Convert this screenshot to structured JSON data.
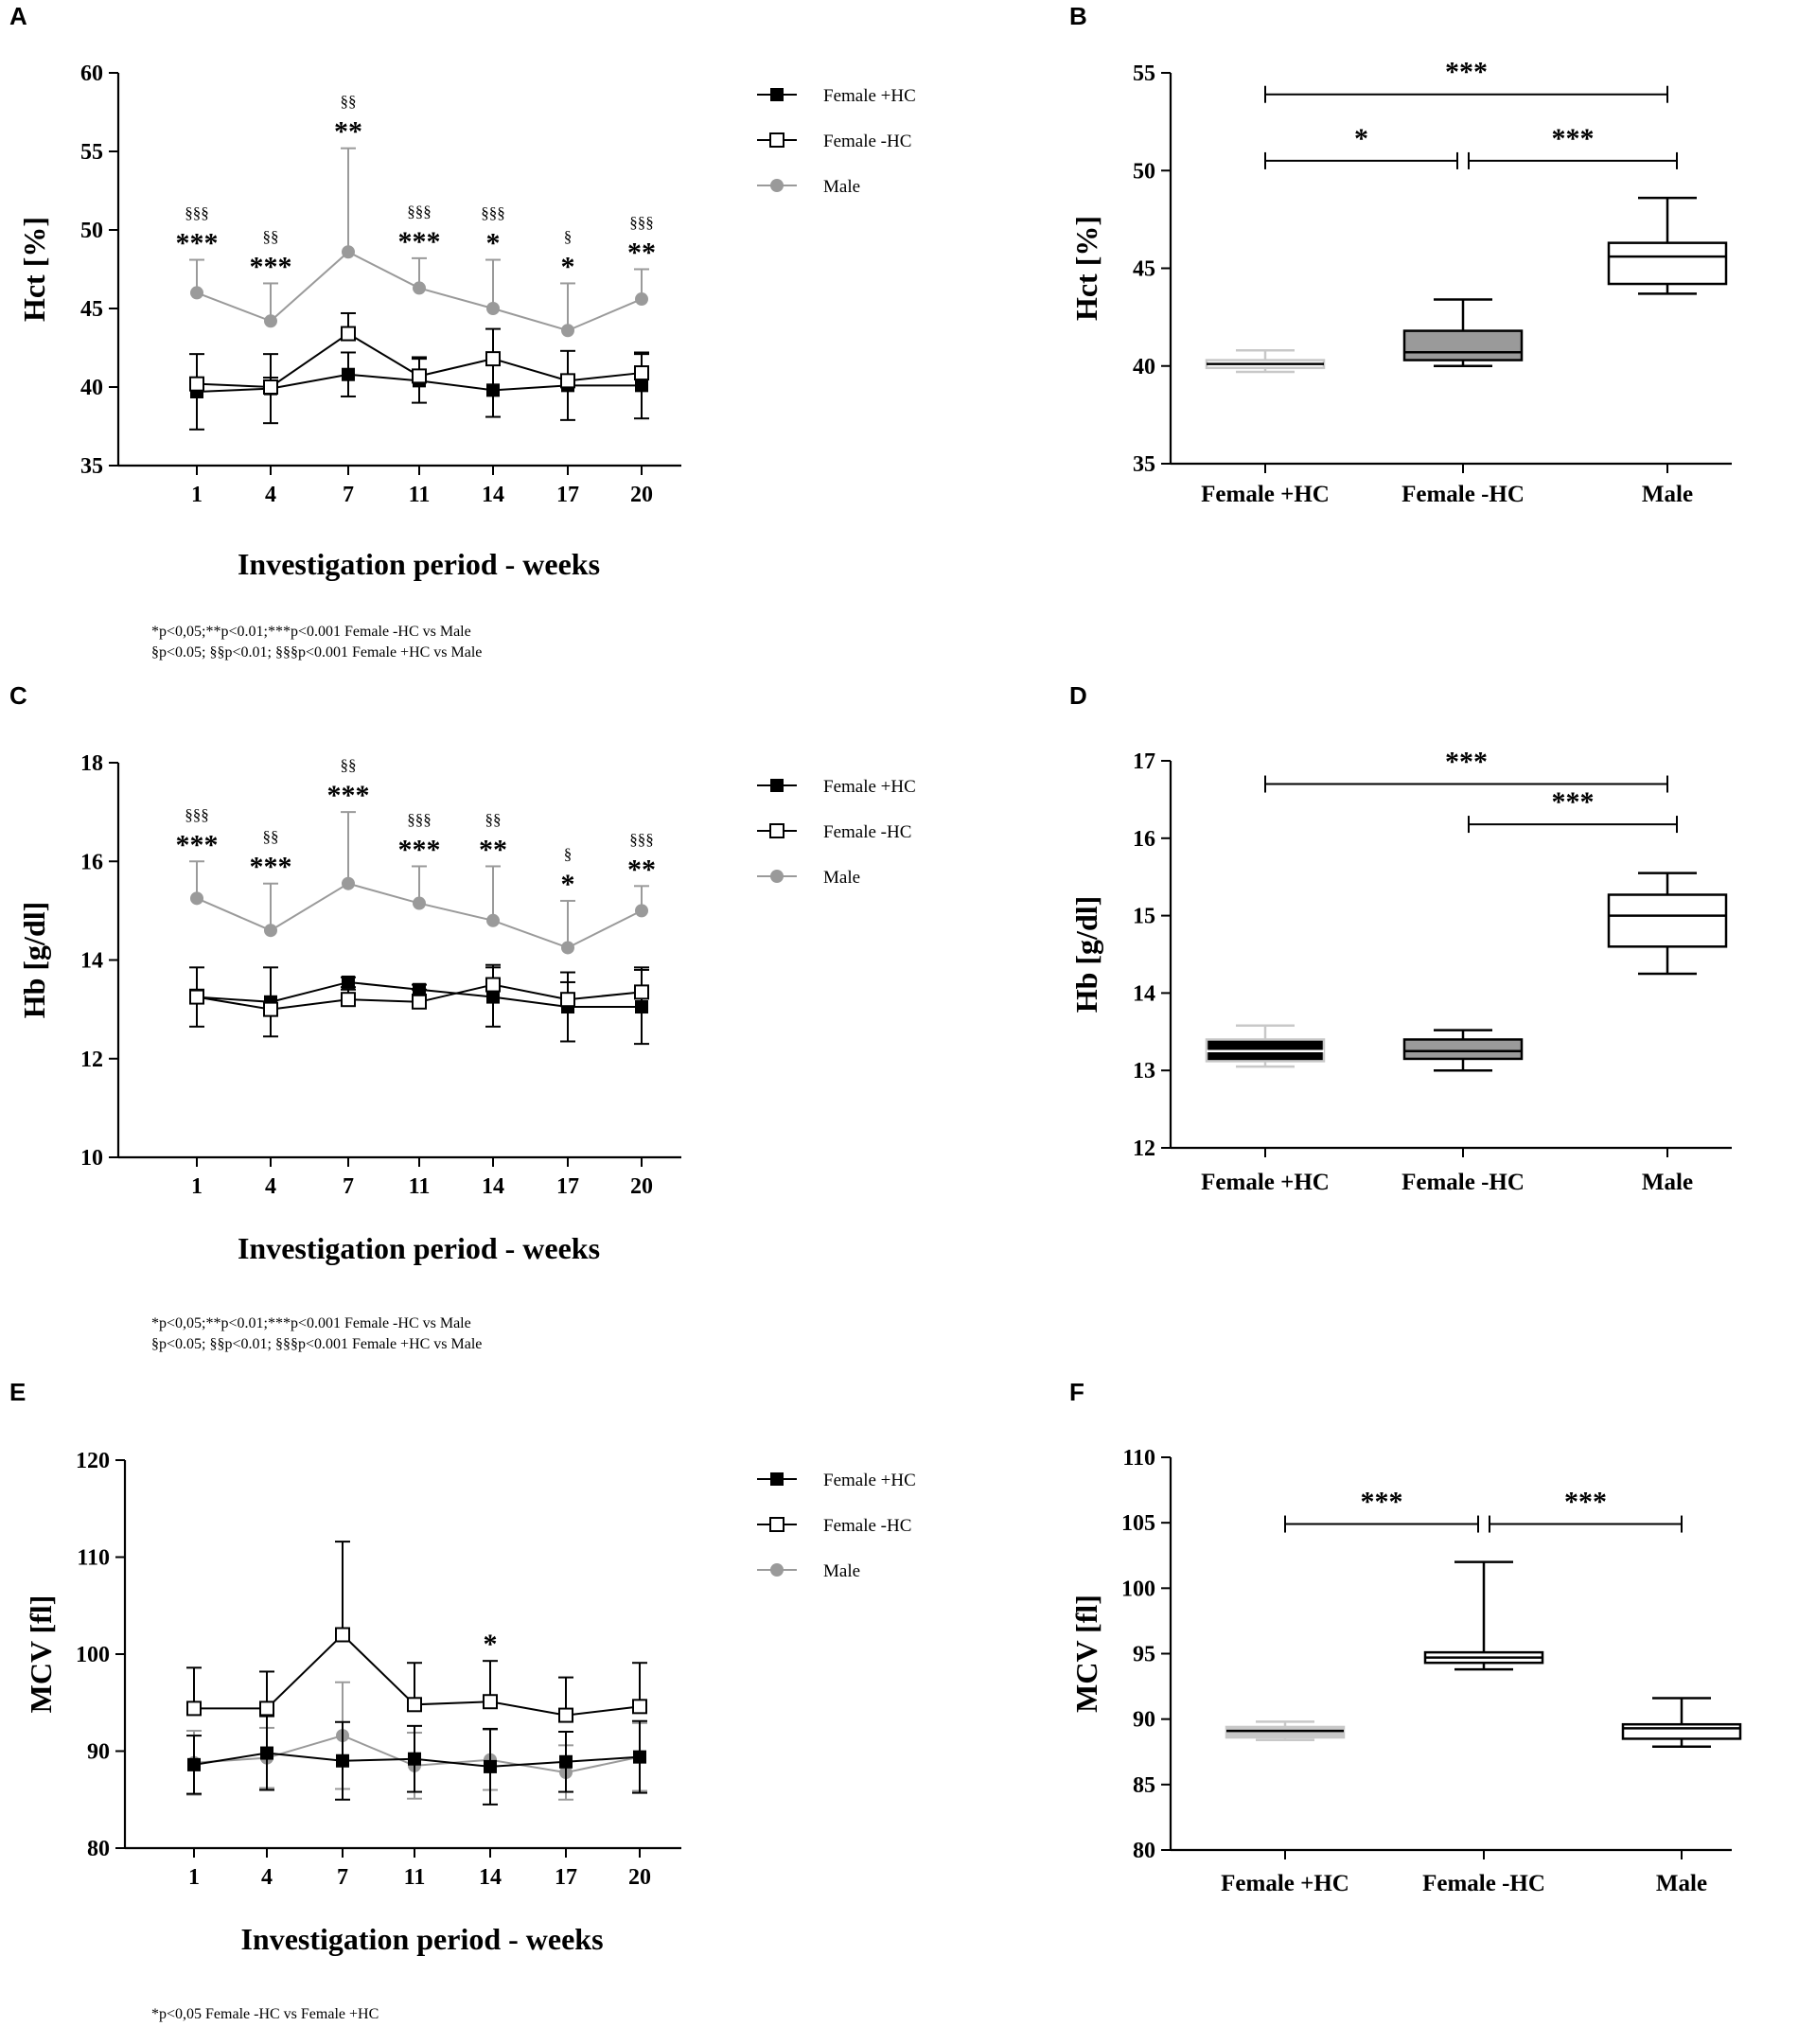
{
  "panels": {
    "A": "A",
    "B": "B",
    "C": "C",
    "D": "D",
    "E": "E",
    "F": "F"
  },
  "colors": {
    "female_hc": "#000000",
    "female_nohc": "#000000",
    "male": "#9a9a9a",
    "box_light": "#c8c8c8",
    "box_grey": "#9a9a9a"
  },
  "chart_data": [
    {
      "id": "A",
      "type": "line",
      "ylabel": "Hct [%]",
      "xlabel": "Investigation period - weeks",
      "ylim": [
        35,
        60
      ],
      "yticks": [
        35,
        40,
        45,
        50,
        55,
        60
      ],
      "categories": [
        "1",
        "4",
        "7",
        "11",
        "14",
        "17",
        "20"
      ],
      "series": [
        {
          "name": "Female +HC",
          "values": [
            39.7,
            39.9,
            40.8,
            40.4,
            39.8,
            40.1,
            40.1
          ],
          "err": [
            2.4,
            2.2,
            1.4,
            1.4,
            1.7,
            2.2,
            2.1
          ],
          "err_dir": "both"
        },
        {
          "name": "Female -HC",
          "values": [
            40.2,
            40.0,
            43.4,
            40.7,
            41.8,
            40.4,
            40.9
          ],
          "err": [
            0.3,
            0.6,
            1.3,
            1.2,
            1.9,
            0.3,
            1.2
          ],
          "err_dir": "up"
        },
        {
          "name": "Male",
          "values": [
            46.0,
            44.2,
            48.6,
            46.3,
            45.0,
            43.6,
            45.6
          ],
          "err": [
            2.1,
            2.4,
            6.6,
            1.9,
            3.1,
            3.0,
            1.9
          ],
          "err_dir": "up"
        }
      ],
      "stars": [
        "***",
        "***",
        "**",
        "***",
        "*",
        "*",
        "**"
      ],
      "sections": [
        "§§§",
        "§§",
        "§§",
        "§§§",
        "§§§",
        "§",
        "§§§"
      ],
      "footnote": [
        "*p<0,05;**p<0.01;***p<0.001 Female -HC vs  Male",
        "§p<0.05; §§p<0.01; §§§p<0.001 Female +HC vs Male"
      ]
    },
    {
      "id": "B",
      "type": "box",
      "ylabel": "Hct [%]",
      "ylim": [
        35,
        55
      ],
      "yticks": [
        35,
        40,
        45,
        50,
        55
      ],
      "categories": [
        "Female +HC",
        "Female -HC",
        "Male"
      ],
      "boxes": [
        {
          "min": 39.7,
          "q1": 39.9,
          "median": 40.1,
          "q3": 40.3,
          "max": 40.8
        },
        {
          "min": 40.0,
          "q1": 40.3,
          "median": 40.7,
          "q3": 41.8,
          "max": 43.4
        },
        {
          "min": 43.7,
          "q1": 44.2,
          "median": 45.6,
          "q3": 46.3,
          "max": 48.6
        }
      ],
      "brackets": [
        {
          "from": 0,
          "to": 2,
          "label": "***",
          "level": 53.9
        },
        {
          "from": 0,
          "to": 1,
          "label": "*",
          "level": 50.5
        },
        {
          "from": 1,
          "to": 2,
          "label": "***",
          "level": 50.5
        }
      ]
    },
    {
      "id": "C",
      "type": "line",
      "ylabel": "Hb [g/dl]",
      "xlabel": "Investigation period - weeks",
      "ylim": [
        10,
        18
      ],
      "yticks": [
        10,
        12,
        14,
        16,
        18
      ],
      "categories": [
        "1",
        "4",
        "7",
        "11",
        "14",
        "17",
        "20"
      ],
      "series": [
        {
          "name": "Female +HC",
          "values": [
            13.25,
            13.15,
            13.55,
            13.4,
            13.25,
            13.05,
            13.05
          ],
          "err": [
            0.6,
            0.7,
            0.1,
            0.1,
            0.6,
            0.7,
            0.75
          ],
          "err_dir": "both"
        },
        {
          "name": "Female -HC",
          "values": [
            13.25,
            13.0,
            13.2,
            13.15,
            13.5,
            13.2,
            13.35
          ],
          "err": [
            0.15,
            0.1,
            0.2,
            0.25,
            0.4,
            0.35,
            0.5
          ],
          "err_dir": "up"
        },
        {
          "name": "Male",
          "values": [
            15.25,
            14.6,
            15.55,
            15.15,
            14.8,
            14.25,
            15.0
          ],
          "err": [
            0.75,
            0.95,
            1.45,
            0.75,
            1.1,
            0.95,
            0.5
          ],
          "err_dir": "up"
        }
      ],
      "stars": [
        "***",
        "***",
        "***",
        "***",
        "**",
        "*",
        "**"
      ],
      "sections": [
        "§§§",
        "§§",
        "§§",
        "§§§",
        "§§",
        "§",
        "§§§"
      ],
      "footnote": [
        "*p<0,05;**p<0.01;***p<0.001 Female -HC vs  Male",
        "§p<0.05; §§p<0.01; §§§p<0.001 Female +HC vs Male"
      ]
    },
    {
      "id": "D",
      "type": "box",
      "ylabel": "Hb [g/dl]",
      "ylim": [
        12,
        17
      ],
      "yticks": [
        12,
        13,
        14,
        15,
        16,
        17
      ],
      "categories": [
        "Female +HC",
        "Female -HC",
        "Male"
      ],
      "boxes": [
        {
          "min": 13.05,
          "q1": 13.12,
          "median": 13.25,
          "q3": 13.4,
          "max": 13.58
        },
        {
          "min": 13.0,
          "q1": 13.15,
          "median": 13.25,
          "q3": 13.4,
          "max": 13.52
        },
        {
          "min": 14.25,
          "q1": 14.6,
          "median": 15.0,
          "q3": 15.27,
          "max": 15.55
        }
      ],
      "brackets": [
        {
          "from": 0,
          "to": 2,
          "label": "***",
          "level": 16.7
        },
        {
          "from": 1,
          "to": 2,
          "label": "***",
          "level": 16.18
        }
      ]
    },
    {
      "id": "E",
      "type": "line",
      "ylabel": "MCV [fl]",
      "xlabel": "Investigation period - weeks",
      "ylim": [
        80,
        120
      ],
      "yticks": [
        80,
        90,
        100,
        110,
        120
      ],
      "categories": [
        "1",
        "4",
        "7",
        "11",
        "14",
        "17",
        "20"
      ],
      "series": [
        {
          "name": "Female +HC",
          "values": [
            88.6,
            89.8,
            89.0,
            89.2,
            88.4,
            88.9,
            89.4
          ],
          "err": [
            3.0,
            3.8,
            4.0,
            3.4,
            3.9,
            3.1,
            3.7
          ],
          "err_dir": "both"
        },
        {
          "name": "Female -HC",
          "values": [
            94.4,
            94.4,
            102.0,
            94.8,
            95.1,
            93.7,
            94.6
          ],
          "err": [
            4.2,
            3.8,
            9.6,
            4.3,
            4.2,
            3.9,
            4.5
          ],
          "err_dir": "up"
        },
        {
          "name": "Male",
          "values": [
            88.8,
            89.3,
            91.6,
            88.5,
            89.1,
            87.8,
            89.4
          ],
          "err": [
            3.3,
            3.1,
            5.5,
            3.4,
            3.1,
            2.8,
            3.5
          ],
          "err_dir": "both"
        }
      ],
      "stars": [
        "",
        "",
        "",
        "",
        "*",
        "",
        ""
      ],
      "sections": [
        "",
        "",
        "",
        "",
        "",
        "",
        ""
      ],
      "footnote": [
        "*p<0,05 Female -HC vs  Female +HC"
      ]
    },
    {
      "id": "F",
      "type": "box",
      "ylabel": "MCV [fl]",
      "ylim": [
        80,
        110
      ],
      "yticks": [
        80,
        85,
        90,
        95,
        100,
        105,
        110
      ],
      "categories": [
        "Female +HC",
        "Female -HC",
        "Male"
      ],
      "boxes": [
        {
          "min": 88.4,
          "q1": 88.6,
          "median": 89.1,
          "q3": 89.4,
          "max": 89.8
        },
        {
          "min": 93.8,
          "q1": 94.3,
          "median": 94.7,
          "q3": 95.1,
          "max": 102.0
        },
        {
          "min": 87.9,
          "q1": 88.5,
          "median": 89.3,
          "q3": 89.6,
          "max": 91.6
        }
      ],
      "brackets": [
        {
          "from": 0,
          "to": 1,
          "label": "***",
          "level": 104.9
        },
        {
          "from": 1,
          "to": 2,
          "label": "***",
          "level": 104.9
        }
      ]
    }
  ]
}
